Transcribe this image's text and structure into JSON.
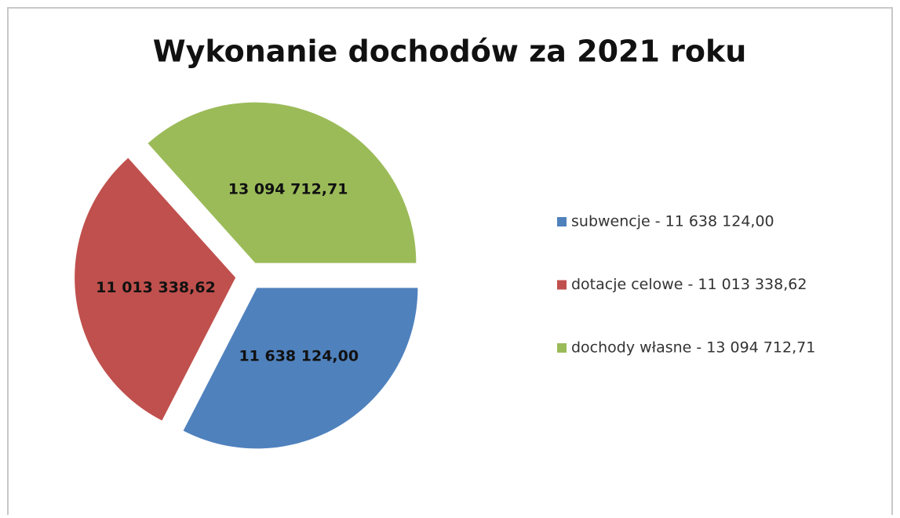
{
  "chart_data": {
    "type": "pie",
    "title": "Wykonanie dochodów za 2021 roku",
    "categories": [
      "subwencje - 11 638 124,00",
      "dotacje celowe - 11 013 338,62",
      "dochody własne - 13 094 712,71"
    ],
    "values": [
      11638124.0,
      11013338.62,
      13094712.71
    ],
    "value_labels": [
      "11 638 124,00",
      "11 013 338,62",
      "13 094 712,71"
    ],
    "colors": [
      "#4f81bd",
      "#c0504d",
      "#9bbb59"
    ],
    "legend": "right"
  }
}
